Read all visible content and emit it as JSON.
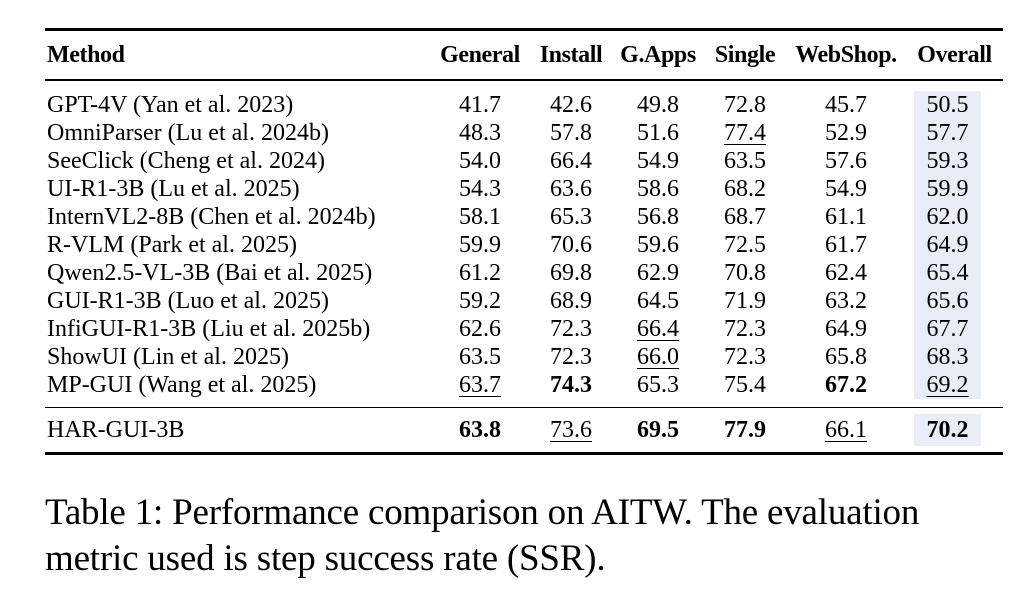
{
  "table": {
    "headers": [
      "Method",
      "General",
      "Install",
      "G.Apps",
      "Single",
      "WebShop.",
      "Overall"
    ],
    "rows": [
      {
        "method": "GPT-4V (Yan et al. 2023)",
        "values": [
          "41.7",
          "42.6",
          "49.8",
          "72.8",
          "45.7",
          "50.5"
        ]
      },
      {
        "method": "OmniParser (Lu et al. 2024b)",
        "values": [
          "48.3",
          "57.8",
          "51.6",
          "77.4",
          "52.9",
          "57.7"
        ]
      },
      {
        "method": "SeeClick (Cheng et al. 2024)",
        "values": [
          "54.0",
          "66.4",
          "54.9",
          "63.5",
          "57.6",
          "59.3"
        ]
      },
      {
        "method": "UI-R1-3B (Lu et al. 2025)",
        "values": [
          "54.3",
          "63.6",
          "58.6",
          "68.2",
          "54.9",
          "59.9"
        ]
      },
      {
        "method": "InternVL2-8B (Chen et al. 2024b)",
        "values": [
          "58.1",
          "65.3",
          "56.8",
          "68.7",
          "61.1",
          "62.0"
        ]
      },
      {
        "method": "R-VLM (Park et al. 2025)",
        "values": [
          "59.9",
          "70.6",
          "59.6",
          "72.5",
          "61.7",
          "64.9"
        ]
      },
      {
        "method": "Qwen2.5-VL-3B (Bai et al. 2025)",
        "values": [
          "61.2",
          "69.8",
          "62.9",
          "70.8",
          "62.4",
          "65.4"
        ]
      },
      {
        "method": "GUI-R1-3B (Luo et al. 2025)",
        "values": [
          "59.2",
          "68.9",
          "64.5",
          "71.9",
          "63.2",
          "65.6"
        ]
      },
      {
        "method": "InfiGUI-R1-3B (Liu et al. 2025b)",
        "values": [
          "62.6",
          "72.3",
          "66.4",
          "72.3",
          "64.9",
          "67.7"
        ]
      },
      {
        "method": "ShowUI (Lin et al. 2025)",
        "values": [
          "63.5",
          "72.3",
          "66.0",
          "72.3",
          "65.8",
          "68.3"
        ]
      },
      {
        "method": "MP-GUI (Wang et al. 2025)",
        "values": [
          "63.7",
          "74.3",
          "65.3",
          "75.4",
          "67.2",
          "69.2"
        ]
      }
    ],
    "ours": {
      "method": "HAR-GUI-3B",
      "values": [
        "63.8",
        "73.6",
        "69.5",
        "77.9",
        "66.1",
        "70.2"
      ]
    },
    "overall_highlight_color": "#e8edf7"
  },
  "caption": "Table 1: Performance comparison on AITW. The evaluation metric used is step success rate (SSR)."
}
